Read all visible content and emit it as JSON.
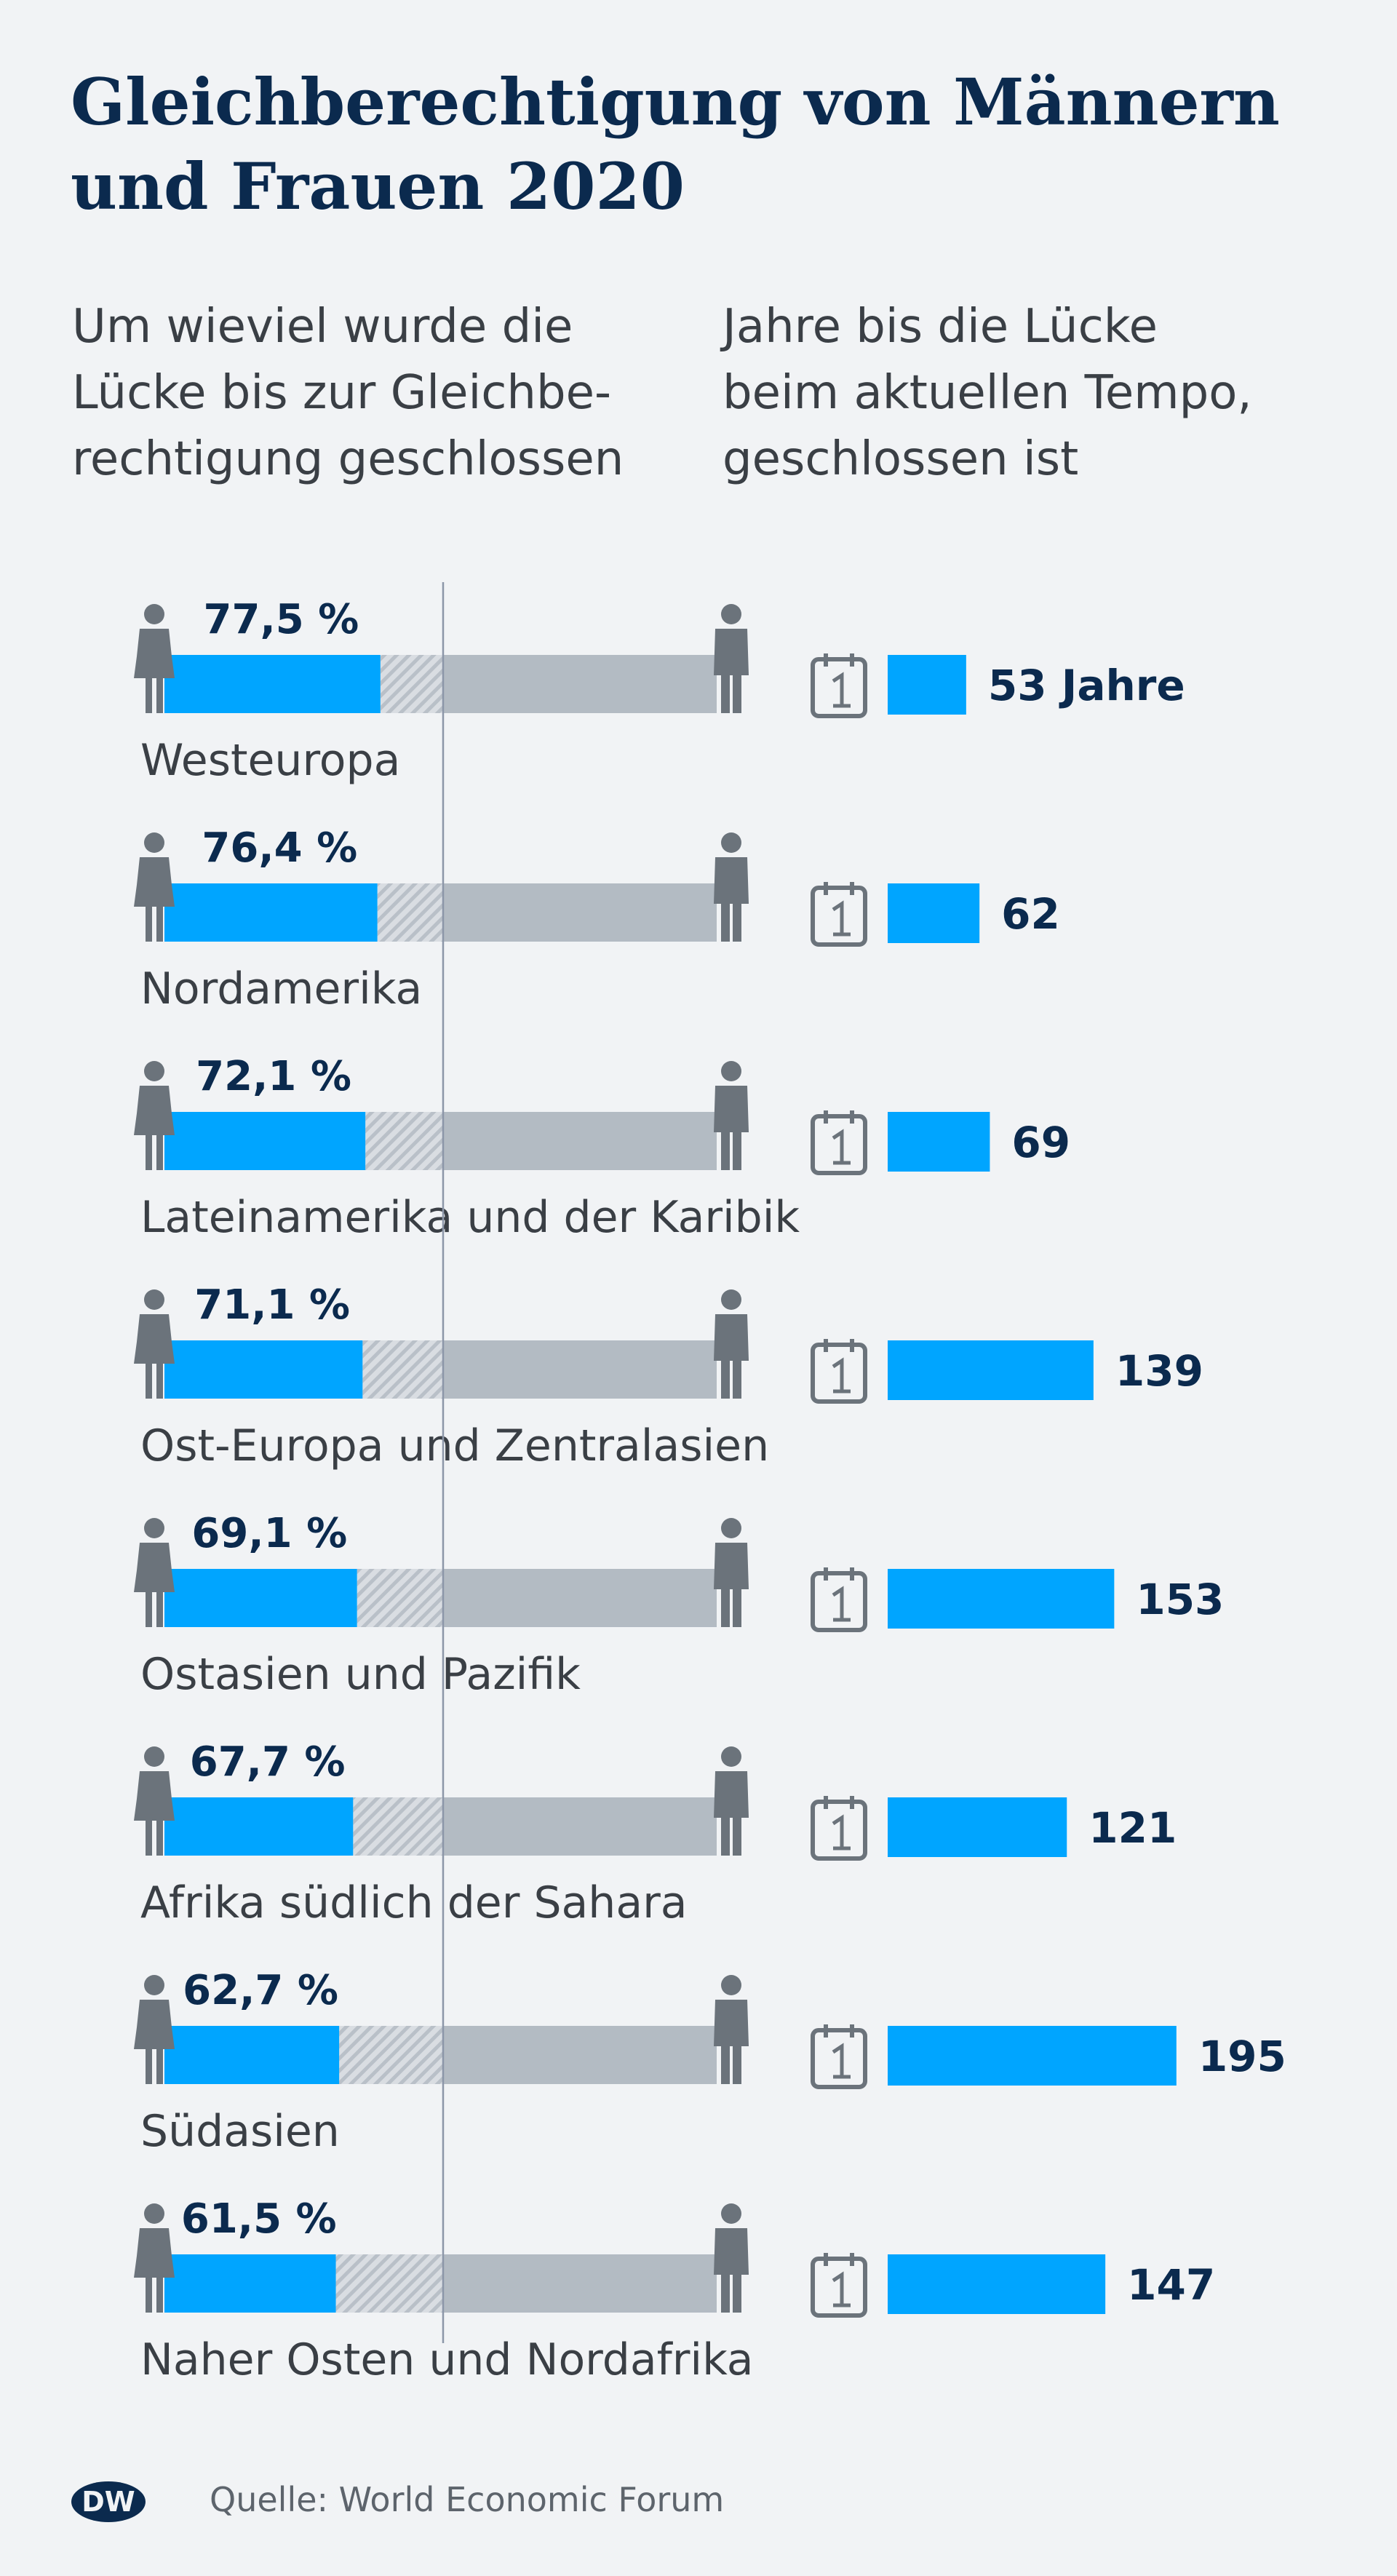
{
  "title": "Gleichberechtigung von Männern und Frauen 2020",
  "subtitle_left": "Um wieviel wurde die\nLücke bis zur Gleichbe-\nrechtigung geschlossen",
  "subtitle_right": "Jahre bis die Lücke\nbeim aktuellen Tempo,\ngeschlossen ist",
  "source": "Quelle: World Economic Forum",
  "logo_text": "DW",
  "icons": {
    "woman": "woman-icon",
    "man": "man-icon",
    "calendar": "calendar-icon",
    "logo": "dw-logo-icon"
  },
  "colors": {
    "accent": "#00a5ff",
    "gap": "#b3bbc3",
    "hatch": "#c2c8cf",
    "figure": "#6b737b",
    "label_dark": "#0b2a4e",
    "text": "#3a3f45",
    "divider": "#8c96a8",
    "background": "#f1f3f5"
  },
  "chart_data": {
    "type": "bar",
    "categories": [
      "Westeuropa",
      "Nordamerika",
      "Lateinamerika und der Karibik",
      "Ost-Europa und Zentralasien",
      "Ostasien und Pazifik",
      "Afrika südlich der Sahara",
      "Südasien",
      "Naher Osten und Nordafrika"
    ],
    "series": [
      {
        "name": "Um wieviel wurde die Lücke bis zur Gleichberechtigung geschlossen",
        "values": [
          77.5,
          76.4,
          72.1,
          71.1,
          69.1,
          67.7,
          62.7,
          61.5
        ],
        "labels": [
          "77,5 %",
          "76,4 %",
          "72,1 %",
          "71,1 %",
          "69,1 %",
          "67,7 %",
          "62,7 %",
          "61,5 %"
        ],
        "xlim": [
          0,
          100
        ],
        "reference_line": 100
      },
      {
        "name": "Jahre bis die Lücke beim aktuellen Tempo, geschlossen ist",
        "values": [
          53,
          62,
          69,
          139,
          153,
          121,
          195,
          147
        ],
        "labels": [
          "53 Jahre",
          "62",
          "69",
          "139",
          "153",
          "121",
          "195",
          "147"
        ]
      }
    ],
    "grid": false,
    "legend": "none"
  }
}
